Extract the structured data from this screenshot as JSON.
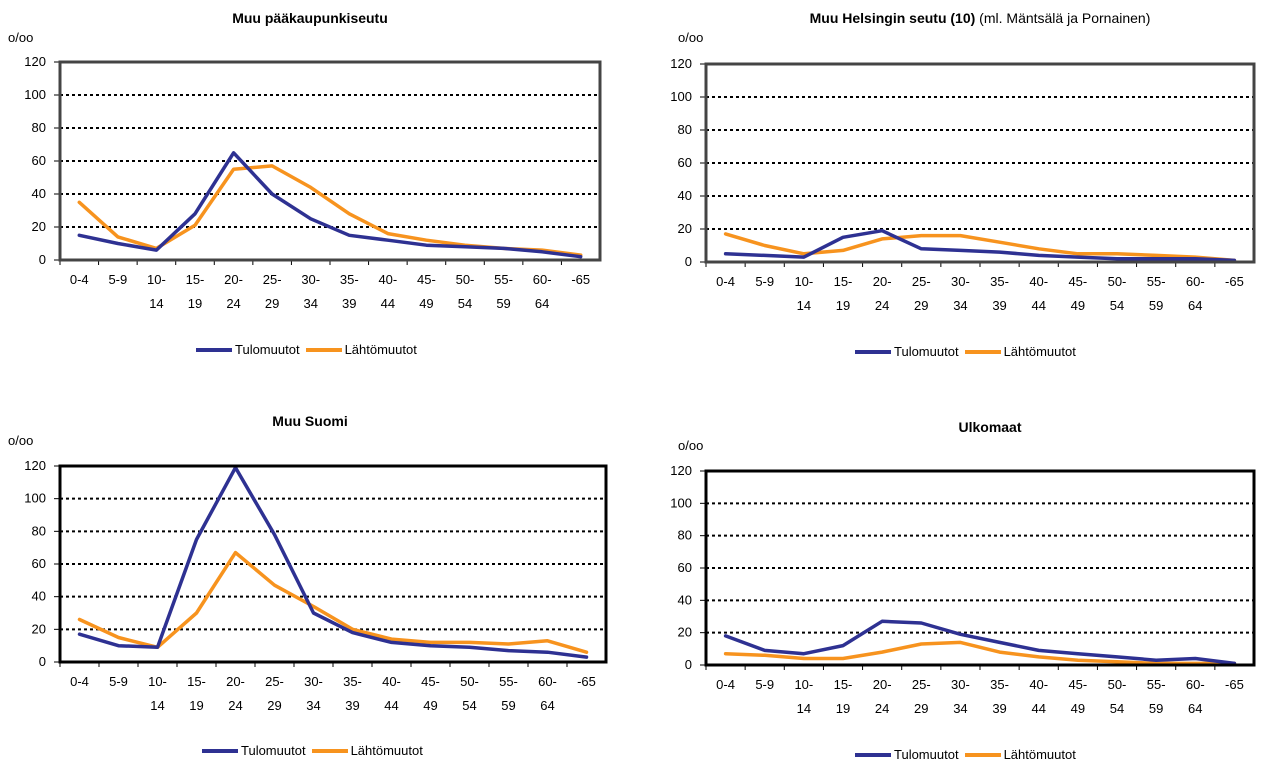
{
  "colors": {
    "tulo": "#2e3192",
    "lahto": "#f7931e"
  },
  "chart_data": [
    {
      "type": "line",
      "title_bold": "Muu pääkaupunkiseutu",
      "title_rest": "",
      "unit_label": "o/oo",
      "categories": [
        [
          "0-4",
          ""
        ],
        [
          "5-9",
          ""
        ],
        [
          "10-",
          "14"
        ],
        [
          "15-",
          "19"
        ],
        [
          "20-",
          "24"
        ],
        [
          "25-",
          "29"
        ],
        [
          "30-",
          "34"
        ],
        [
          "35-",
          "39"
        ],
        [
          "40-",
          "44"
        ],
        [
          "45-",
          "49"
        ],
        [
          "50-",
          "54"
        ],
        [
          "55-",
          "59"
        ],
        [
          "60-",
          "64"
        ],
        [
          "-65",
          ""
        ]
      ],
      "y_ticks": [
        "0",
        "20",
        "40",
        "60",
        "80",
        "100",
        "120"
      ],
      "ylim": [
        0,
        120
      ],
      "grid": "dotted horizontal",
      "legend_position": "bottom",
      "series": [
        {
          "name": "Tulomuutot",
          "color": "#2e3192",
          "values": [
            15,
            10,
            6,
            28,
            65,
            40,
            25,
            15,
            12,
            9,
            8,
            7,
            5,
            2
          ]
        },
        {
          "name": "Lähtömuutot",
          "color": "#f7931e",
          "values": [
            35,
            14,
            7,
            21,
            55,
            57,
            44,
            28,
            16,
            12,
            9,
            7,
            6,
            3
          ]
        }
      ]
    },
    {
      "type": "line",
      "title_bold": "Muu Helsingin seutu (10)",
      "title_rest": " (ml. Mäntsälä ja Pornainen)",
      "unit_label": "o/oo",
      "categories": [
        [
          "0-4",
          ""
        ],
        [
          "5-9",
          ""
        ],
        [
          "10-",
          "14"
        ],
        [
          "15-",
          "19"
        ],
        [
          "20-",
          "24"
        ],
        [
          "25-",
          "29"
        ],
        [
          "30-",
          "34"
        ],
        [
          "35-",
          "39"
        ],
        [
          "40-",
          "44"
        ],
        [
          "45-",
          "49"
        ],
        [
          "50-",
          "54"
        ],
        [
          "55-",
          "59"
        ],
        [
          "60-",
          "64"
        ],
        [
          "-65",
          ""
        ]
      ],
      "y_ticks": [
        "0",
        "20",
        "40",
        "60",
        "80",
        "100",
        "120"
      ],
      "ylim": [
        0,
        120
      ],
      "grid": "dotted horizontal",
      "legend_position": "bottom",
      "series": [
        {
          "name": "Tulomuutot",
          "color": "#2e3192",
          "values": [
            5,
            4,
            3,
            15,
            19,
            8,
            7,
            6,
            4,
            3,
            2,
            2,
            2,
            1
          ]
        },
        {
          "name": "Lähtömuutot",
          "color": "#f7931e",
          "values": [
            17,
            10,
            5,
            7,
            14,
            16,
            16,
            12,
            8,
            5,
            5,
            4,
            3,
            1
          ]
        }
      ]
    },
    {
      "type": "line",
      "title_bold": "Muu Suomi",
      "title_rest": "",
      "unit_label": "o/oo",
      "categories": [
        [
          "0-4",
          ""
        ],
        [
          "5-9",
          ""
        ],
        [
          "10-",
          "14"
        ],
        [
          "15-",
          "19"
        ],
        [
          "20-",
          "24"
        ],
        [
          "25-",
          "29"
        ],
        [
          "30-",
          "34"
        ],
        [
          "35-",
          "39"
        ],
        [
          "40-",
          "44"
        ],
        [
          "45-",
          "49"
        ],
        [
          "50-",
          "54"
        ],
        [
          "55-",
          "59"
        ],
        [
          "60-",
          "64"
        ],
        [
          "-65",
          ""
        ]
      ],
      "y_ticks": [
        "0",
        "20",
        "40",
        "60",
        "80",
        "100",
        "120"
      ],
      "ylim": [
        0,
        120
      ],
      "grid": "dotted horizontal",
      "legend_position": "bottom",
      "series": [
        {
          "name": "Tulomuutot",
          "color": "#2e3192",
          "values": [
            17,
            10,
            9,
            75,
            119,
            78,
            30,
            18,
            12,
            10,
            9,
            7,
            6,
            3
          ]
        },
        {
          "name": "Lähtömuutot",
          "color": "#f7931e",
          "values": [
            26,
            15,
            9,
            30,
            67,
            47,
            34,
            20,
            14,
            12,
            12,
            11,
            13,
            6
          ]
        }
      ]
    },
    {
      "type": "line",
      "title_bold": "Ulkomaat",
      "title_rest": "",
      "unit_label": "o/oo",
      "categories": [
        [
          "0-4",
          ""
        ],
        [
          "5-9",
          ""
        ],
        [
          "10-",
          "14"
        ],
        [
          "15-",
          "19"
        ],
        [
          "20-",
          "24"
        ],
        [
          "25-",
          "29"
        ],
        [
          "30-",
          "34"
        ],
        [
          "35-",
          "39"
        ],
        [
          "40-",
          "44"
        ],
        [
          "45-",
          "49"
        ],
        [
          "50-",
          "54"
        ],
        [
          "55-",
          "59"
        ],
        [
          "60-",
          "64"
        ],
        [
          "-65",
          ""
        ]
      ],
      "y_ticks": [
        "0",
        "20",
        "40",
        "60",
        "80",
        "100",
        "120"
      ],
      "ylim": [
        0,
        120
      ],
      "grid": "dotted horizontal",
      "legend_position": "bottom",
      "series": [
        {
          "name": "Tulomuutot",
          "color": "#2e3192",
          "values": [
            18,
            9,
            7,
            12,
            27,
            26,
            19,
            14,
            9,
            7,
            5,
            3,
            4,
            1
          ]
        },
        {
          "name": "Lähtömuutot",
          "color": "#f7931e",
          "values": [
            7,
            6,
            4,
            4,
            8,
            13,
            14,
            8,
            5,
            3,
            2,
            1,
            1,
            1
          ]
        }
      ]
    }
  ]
}
